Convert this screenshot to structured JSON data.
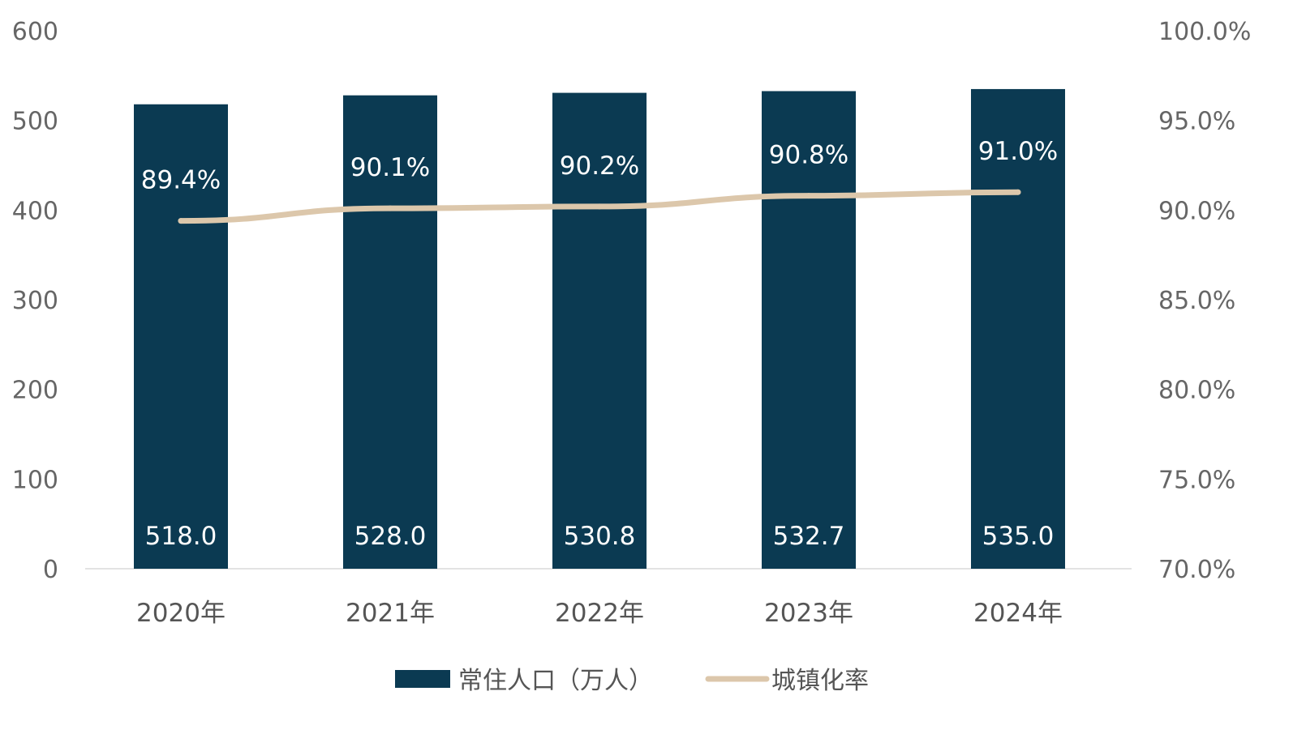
{
  "chart_data": {
    "type": "bar+line",
    "categories": [
      "2020年",
      "2021年",
      "2022年",
      "2023年",
      "2024年"
    ],
    "series": [
      {
        "name": "常住人口（万人）",
        "type": "bar",
        "axis": "left",
        "values": [
          518.0,
          528.0,
          530.8,
          532.7,
          535.0
        ],
        "labels": [
          "518.0",
          "528.0",
          "530.8",
          "532.7",
          "535.0"
        ],
        "color": "#0b3a52"
      },
      {
        "name": "城镇化率",
        "type": "line",
        "axis": "right",
        "values": [
          89.4,
          90.1,
          90.2,
          90.8,
          91.0
        ],
        "labels": [
          "89.4%",
          "90.1%",
          "90.2%",
          "90.8%",
          "91.0%"
        ],
        "color": "#dcc7ab"
      }
    ],
    "left_axis": {
      "ylim": [
        0,
        600
      ],
      "ticks": [
        "0",
        "100",
        "200",
        "300",
        "400",
        "500",
        "600"
      ]
    },
    "right_axis": {
      "ylim": [
        70,
        100
      ],
      "ticks": [
        "70.0%",
        "75.0%",
        "80.0%",
        "85.0%",
        "90.0%",
        "95.0%",
        "100.0%"
      ]
    },
    "grid": false,
    "legend": "bottom"
  }
}
